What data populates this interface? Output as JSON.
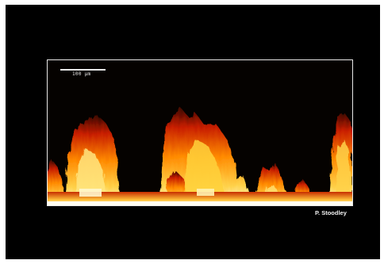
{
  "image": {
    "scale_bar_label": "100 µm",
    "credit": "P. Stoodley",
    "colors": {
      "background": "#000000",
      "border": "#ffffff",
      "hot": "#ffffcc",
      "warm": "#ffb300",
      "deep": "#c81e00"
    }
  }
}
